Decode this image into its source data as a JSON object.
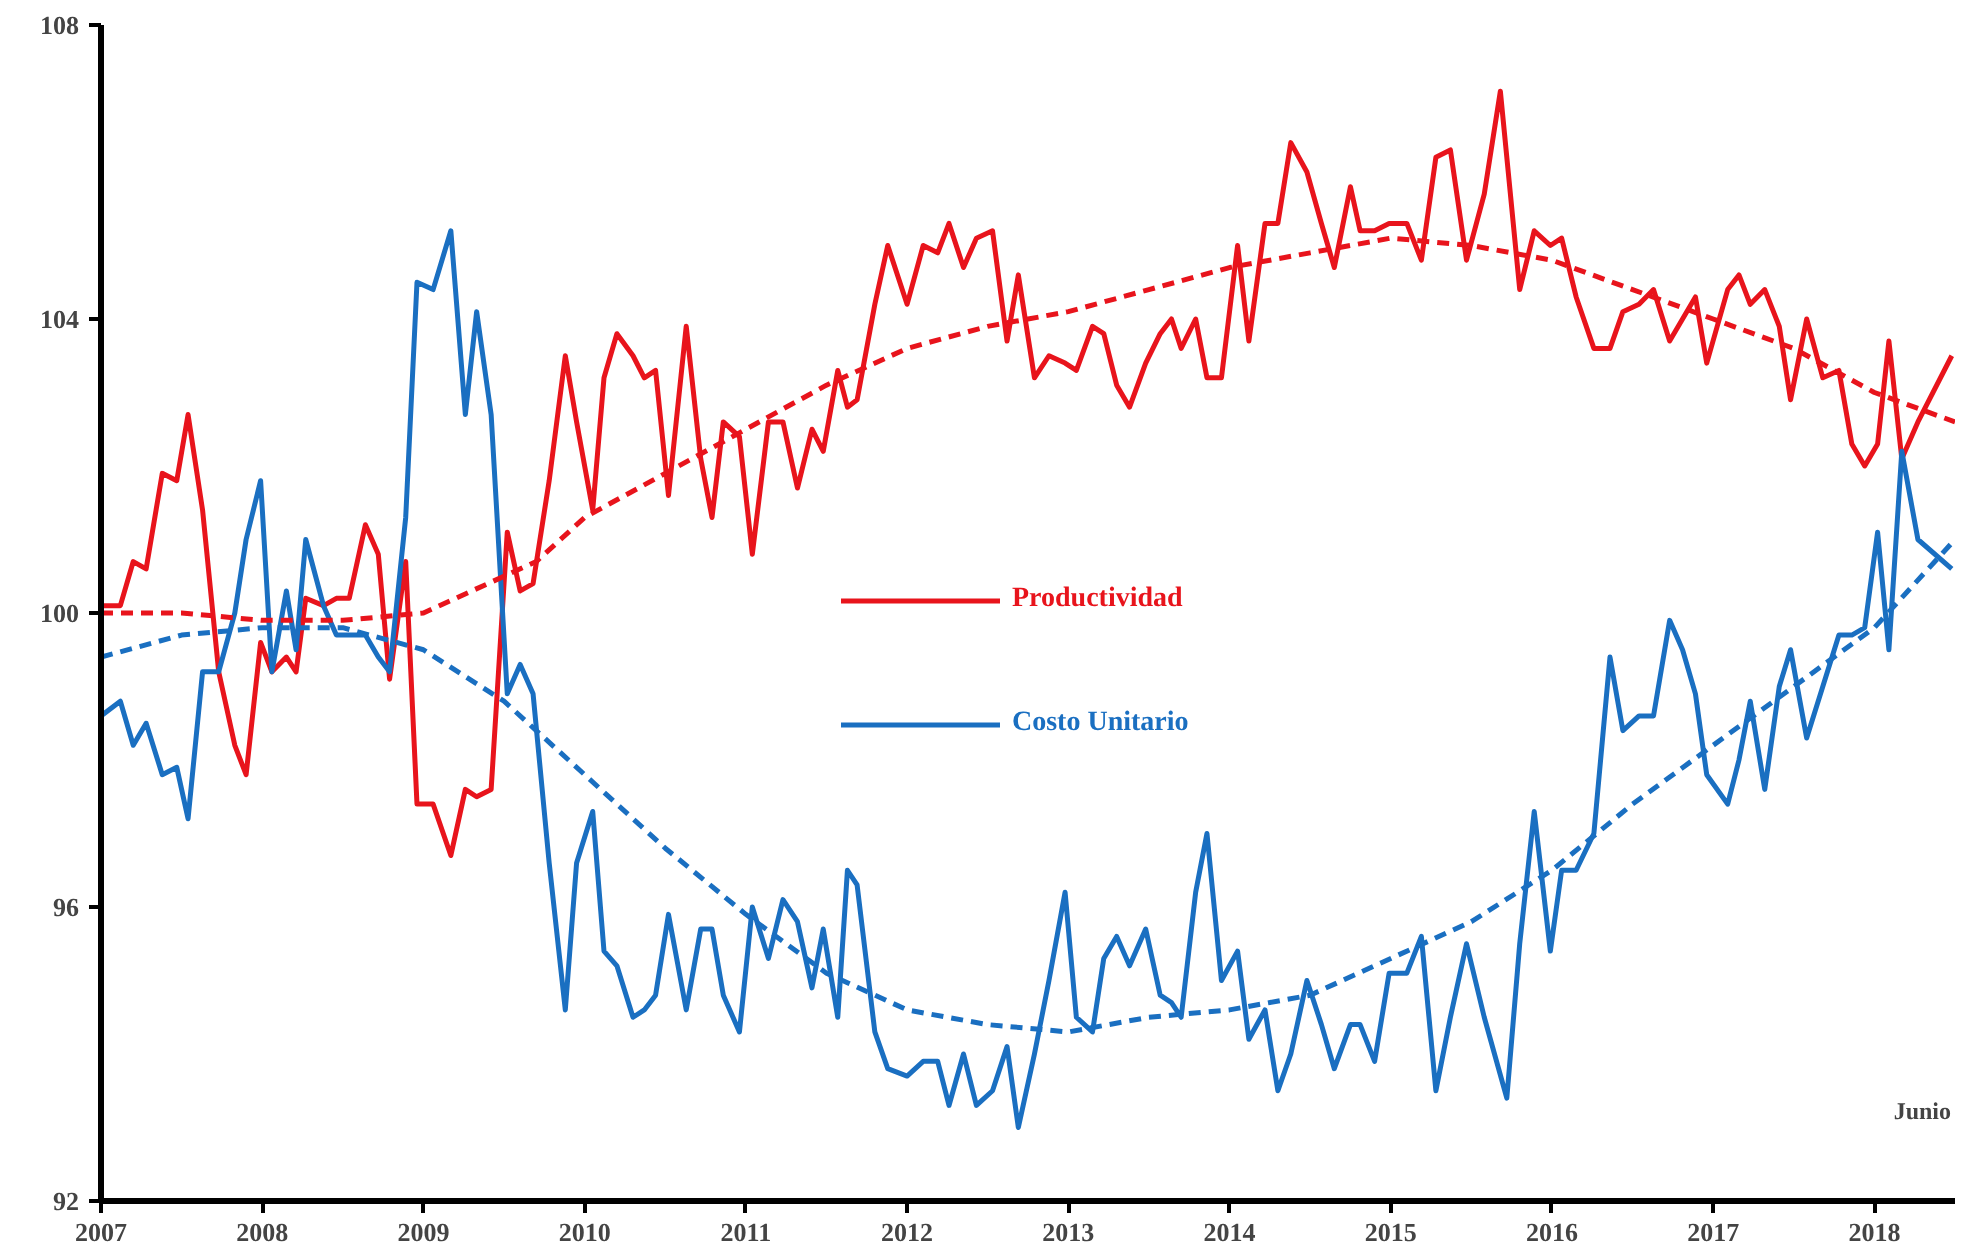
{
  "chart_data": {
    "type": "line",
    "xlim": [
      2007,
      2018.5
    ],
    "ylim": [
      92,
      108
    ],
    "xticks": [
      2007,
      2008,
      2009,
      2010,
      2011,
      2012,
      2013,
      2014,
      2015,
      2016,
      2017,
      2018
    ],
    "yticks": [
      92,
      96,
      100,
      104,
      108
    ],
    "grid": false,
    "legend": "center",
    "line_style": "solid",
    "marker": "none",
    "annotations": [
      "Junio"
    ],
    "series": [
      {
        "name": "Productividad",
        "color": "#e8141c",
        "x": [
          2007.0,
          2007.12,
          2007.2,
          2007.28,
          2007.38,
          2007.47,
          2007.54,
          2007.63,
          2007.73,
          2007.83,
          2007.9,
          2007.99,
          2008.06,
          2008.15,
          2008.21,
          2008.27,
          2008.38,
          2008.46,
          2008.54,
          2008.64,
          2008.72,
          2008.79,
          2008.89,
          2008.96,
          2009.06,
          2009.17,
          2009.26,
          2009.33,
          2009.42,
          2009.52,
          2009.6,
          2009.68,
          2009.78,
          2009.88,
          2009.95,
          2010.05,
          2010.12,
          2010.2,
          2010.3,
          2010.37,
          2010.44,
          2010.52,
          2010.63,
          2010.72,
          2010.79,
          2010.86,
          2010.96,
          2011.04,
          2011.14,
          2011.23,
          2011.32,
          2011.41,
          2011.48,
          2011.57,
          2011.63,
          2011.69,
          2011.8,
          2011.88,
          2012.0,
          2012.1,
          2012.19,
          2012.26,
          2012.35,
          2012.43,
          2012.53,
          2012.62,
          2012.69,
          2012.79,
          2012.88,
          2012.98,
          2013.05,
          2013.15,
          2013.22,
          2013.3,
          2013.38,
          2013.48,
          2013.57,
          2013.64,
          2013.7,
          2013.79,
          2013.86,
          2013.95,
          2014.05,
          2014.12,
          2014.22,
          2014.3,
          2014.38,
          2014.48,
          2014.57,
          2014.65,
          2014.75,
          2014.81,
          2014.9,
          2014.99,
          2015.1,
          2015.19,
          2015.28,
          2015.37,
          2015.47,
          2015.58,
          2015.68,
          2015.8,
          2015.89,
          2015.99,
          2016.06,
          2016.15,
          2016.26,
          2016.36,
          2016.44,
          2016.54,
          2016.63,
          2016.73,
          2016.81,
          2016.89,
          2016.96,
          2017.09,
          2017.16,
          2017.23,
          2017.32,
          2017.41,
          2017.48,
          2017.58,
          2017.68,
          2017.78,
          2017.86,
          2017.94,
          2018.02,
          2018.09,
          2018.17,
          2018.27,
          2018.48
        ],
        "values": [
          100.1,
          100.1,
          100.7,
          100.6,
          101.9,
          101.8,
          102.7,
          101.4,
          99.2,
          98.2,
          97.8,
          99.6,
          99.2,
          99.4,
          99.2,
          100.2,
          100.1,
          100.2,
          100.2,
          101.2,
          100.8,
          99.1,
          100.7,
          97.4,
          97.4,
          96.7,
          97.6,
          97.5,
          97.6,
          101.1,
          100.3,
          100.4,
          101.8,
          103.5,
          102.6,
          101.4,
          103.2,
          103.8,
          103.5,
          103.2,
          103.3,
          101.6,
          103.9,
          102.1,
          101.3,
          102.6,
          102.4,
          100.8,
          102.6,
          102.6,
          101.7,
          102.5,
          102.2,
          103.3,
          102.8,
          102.9,
          104.2,
          105.0,
          104.2,
          105.0,
          104.9,
          105.3,
          104.7,
          105.1,
          105.2,
          103.7,
          104.6,
          103.2,
          103.5,
          103.4,
          103.3,
          103.9,
          103.8,
          103.1,
          102.8,
          103.4,
          103.8,
          104.0,
          103.6,
          104.0,
          103.2,
          103.2,
          105.0,
          103.7,
          105.3,
          105.3,
          106.4,
          106.0,
          105.3,
          104.7,
          105.8,
          105.2,
          105.2,
          105.3,
          105.3,
          104.8,
          106.2,
          106.3,
          104.8,
          105.7,
          107.1,
          104.4,
          105.2,
          105.0,
          105.1,
          104.3,
          103.6,
          103.6,
          104.1,
          104.2,
          104.4,
          103.7,
          104.0,
          104.3,
          103.4,
          104.4,
          104.6,
          104.2,
          104.4,
          103.9,
          102.9,
          104.0,
          103.2,
          103.3,
          102.3,
          102.0,
          102.3,
          103.7,
          102.1,
          102.6,
          103.5
        ]
      },
      {
        "name": "Costo Unitario",
        "color": "#1a6fc1",
        "x": [
          2007.0,
          2007.12,
          2007.2,
          2007.28,
          2007.38,
          2007.47,
          2007.54,
          2007.63,
          2007.73,
          2007.83,
          2007.9,
          2007.99,
          2008.06,
          2008.15,
          2008.21,
          2008.27,
          2008.38,
          2008.46,
          2008.54,
          2008.64,
          2008.72,
          2008.79,
          2008.89,
          2008.96,
          2009.06,
          2009.17,
          2009.26,
          2009.33,
          2009.42,
          2009.52,
          2009.6,
          2009.68,
          2009.78,
          2009.88,
          2009.95,
          2010.05,
          2010.12,
          2010.2,
          2010.3,
          2010.37,
          2010.44,
          2010.52,
          2010.63,
          2010.72,
          2010.79,
          2010.86,
          2010.96,
          2011.04,
          2011.14,
          2011.23,
          2011.32,
          2011.41,
          2011.48,
          2011.57,
          2011.63,
          2011.69,
          2011.8,
          2011.88,
          2012.0,
          2012.1,
          2012.19,
          2012.26,
          2012.35,
          2012.43,
          2012.53,
          2012.62,
          2012.69,
          2012.79,
          2012.88,
          2012.98,
          2013.05,
          2013.15,
          2013.22,
          2013.3,
          2013.38,
          2013.48,
          2013.57,
          2013.64,
          2013.7,
          2013.79,
          2013.86,
          2013.95,
          2014.05,
          2014.12,
          2014.22,
          2014.3,
          2014.38,
          2014.48,
          2014.57,
          2014.65,
          2014.75,
          2014.81,
          2014.9,
          2014.99,
          2015.1,
          2015.19,
          2015.28,
          2015.37,
          2015.47,
          2015.58,
          2015.72,
          2015.8,
          2015.89,
          2015.99,
          2016.06,
          2016.15,
          2016.26,
          2016.36,
          2016.44,
          2016.54,
          2016.63,
          2016.73,
          2016.81,
          2016.89,
          2016.96,
          2017.09,
          2017.16,
          2017.23,
          2017.32,
          2017.41,
          2017.48,
          2017.58,
          2017.68,
          2017.78,
          2017.86,
          2017.94,
          2018.02,
          2018.09,
          2018.17,
          2018.27,
          2018.48
        ],
        "values": [
          98.6,
          98.8,
          98.2,
          98.5,
          97.8,
          97.9,
          97.2,
          99.2,
          99.2,
          100.0,
          101.0,
          101.8,
          99.2,
          100.3,
          99.5,
          101.0,
          100.1,
          99.7,
          99.7,
          99.7,
          99.4,
          99.2,
          101.3,
          104.5,
          104.4,
          105.2,
          102.7,
          104.1,
          102.7,
          98.9,
          99.3,
          98.9,
          96.6,
          94.6,
          96.6,
          97.3,
          95.4,
          95.2,
          94.5,
          94.6,
          94.8,
          95.9,
          94.6,
          95.7,
          95.7,
          94.8,
          94.3,
          96.0,
          95.3,
          96.1,
          95.8,
          94.9,
          95.7,
          94.5,
          96.5,
          96.3,
          94.3,
          93.8,
          93.7,
          93.9,
          93.9,
          93.3,
          94.0,
          93.3,
          93.5,
          94.1,
          93.0,
          94.0,
          95.0,
          96.2,
          94.5,
          94.3,
          95.3,
          95.6,
          95.2,
          95.7,
          94.8,
          94.7,
          94.5,
          96.2,
          97.0,
          95.0,
          95.4,
          94.2,
          94.6,
          93.5,
          94.0,
          95.0,
          94.4,
          93.8,
          94.4,
          94.4,
          93.9,
          95.1,
          95.1,
          95.6,
          93.5,
          94.5,
          95.5,
          94.5,
          93.4,
          95.5,
          97.3,
          95.4,
          96.5,
          96.5,
          97.0,
          99.4,
          98.4,
          98.6,
          98.6,
          99.9,
          99.5,
          98.9,
          97.8,
          97.4,
          98.0,
          98.8,
          97.6,
          99.0,
          99.5,
          98.3,
          99.0,
          99.7,
          99.7,
          99.8,
          101.1,
          99.5,
          102.2,
          101.0,
          100.6
        ]
      },
      {
        "color": "#e8141c",
        "line_style": "dashed",
        "x": [
          2007,
          2007.5,
          2008,
          2008.5,
          2009,
          2009.3,
          2009.7,
          2010,
          2010.5,
          2011,
          2011.5,
          2012,
          2012.5,
          2013,
          2013.5,
          2014,
          2014.5,
          2015,
          2015.5,
          2016,
          2016.5,
          2017,
          2017.5,
          2018,
          2018.5
        ],
        "values": [
          100.0,
          100.0,
          99.9,
          99.9,
          100.0,
          100.3,
          100.7,
          101.3,
          101.9,
          102.5,
          103.1,
          103.6,
          103.9,
          104.1,
          104.4,
          104.7,
          104.9,
          105.1,
          105.0,
          104.8,
          104.4,
          104.0,
          103.6,
          103.0,
          102.6
        ]
      },
      {
        "color": "#1a6fc1",
        "line_style": "dashed",
        "x": [
          2007,
          2007.5,
          2008,
          2008.5,
          2009,
          2009.5,
          2010,
          2010.5,
          2011,
          2011.5,
          2012,
          2012.5,
          2013,
          2013.5,
          2014,
          2014.5,
          2015,
          2015.5,
          2016,
          2016.5,
          2017,
          2017.5,
          2018,
          2018.5
        ],
        "values": [
          99.4,
          99.7,
          99.8,
          99.8,
          99.5,
          98.8,
          97.8,
          96.8,
          95.9,
          95.1,
          94.6,
          94.4,
          94.3,
          94.5,
          94.6,
          94.8,
          95.3,
          95.8,
          96.5,
          97.4,
          98.2,
          99.0,
          99.8,
          101.0
        ]
      }
    ]
  }
}
